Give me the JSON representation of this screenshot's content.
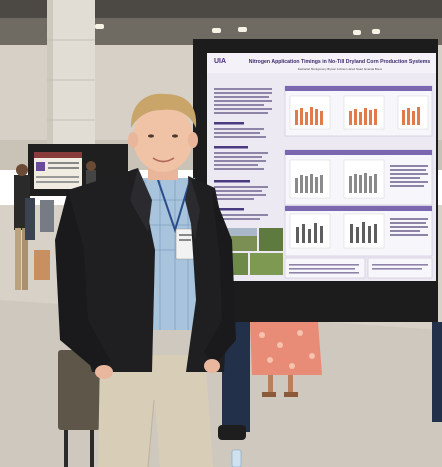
{
  "poster": {
    "logo": "UIA",
    "title": "Nitrogen Application Timings in No-Till Dryland Corn Production Systems",
    "authors": "Zachariah Montgomery  Bryson Johnson  Jared Swart  Amanda Bruce"
  }
}
